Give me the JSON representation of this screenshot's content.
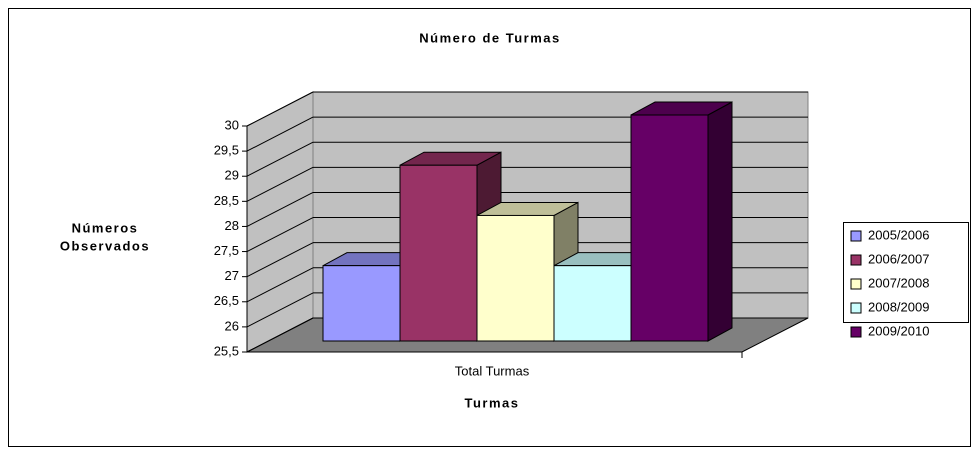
{
  "chart_data": {
    "type": "bar3d",
    "title": "Número de Turmas",
    "y_label": [
      "Números",
      "Observados"
    ],
    "x_label": "Turmas",
    "categories": [
      "Total Turmas"
    ],
    "series": [
      {
        "name": "2005/2006",
        "color": "#9999ff",
        "values": [
          27
        ]
      },
      {
        "name": "2006/2007",
        "color": "#993366",
        "values": [
          29
        ]
      },
      {
        "name": "2007/2008",
        "color": "#ffffcc",
        "values": [
          28
        ]
      },
      {
        "name": "2008/2009",
        "color": "#ccffff",
        "values": [
          27
        ]
      },
      {
        "name": "2009/2010",
        "color": "#660066",
        "values": [
          30
        ]
      }
    ],
    "ylim": [
      25.5,
      30
    ],
    "yticks": [
      {
        "value": 25.5,
        "label": "25,5"
      },
      26,
      {
        "value": 26.5,
        "label": "26,5"
      },
      27,
      {
        "value": 27.5,
        "label": "27,5"
      },
      28,
      {
        "value": 28.5,
        "label": "28,5"
      },
      29,
      {
        "value": 29.5,
        "label": "29,5"
      },
      30
    ],
    "grid": true,
    "legend": "right"
  }
}
